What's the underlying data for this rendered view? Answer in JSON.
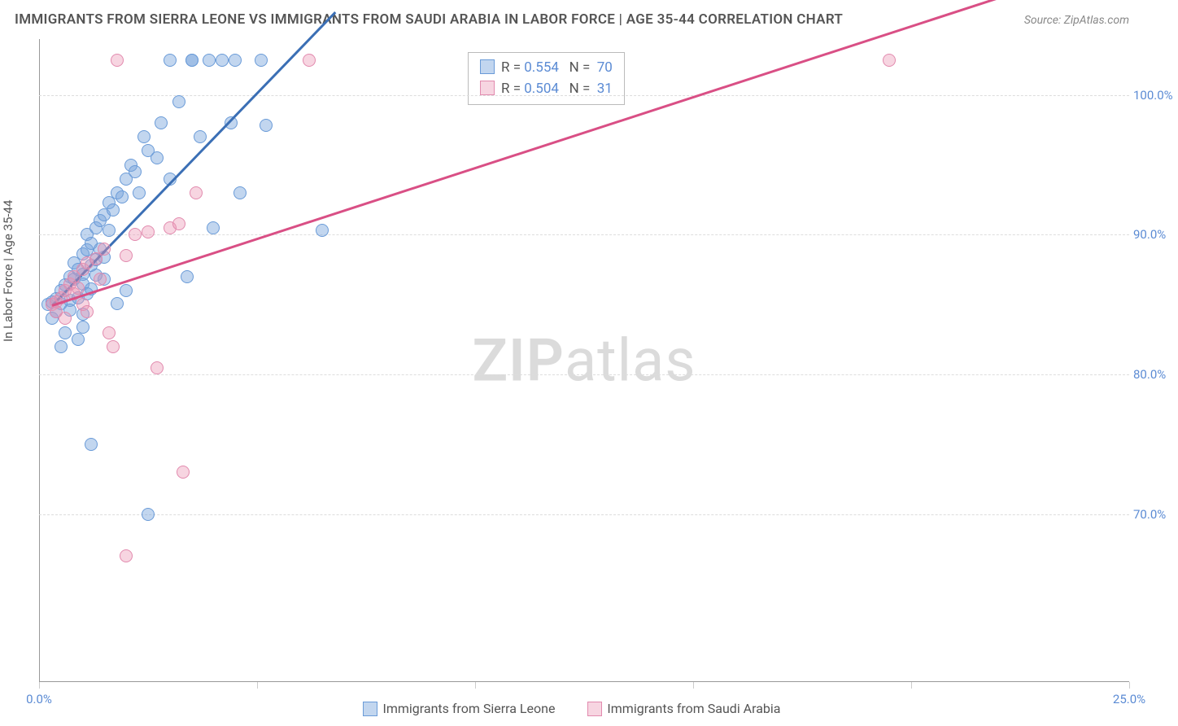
{
  "title": "IMMIGRANTS FROM SIERRA LEONE VS IMMIGRANTS FROM SAUDI ARABIA IN LABOR FORCE | AGE 35-44 CORRELATION CHART",
  "source": "Source: ZipAtlas.com",
  "y_axis_label": "In Labor Force | Age 35-44",
  "watermark_a": "ZIP",
  "watermark_b": "atlas",
  "chart": {
    "type": "scatter",
    "xlim": [
      0,
      25
    ],
    "ylim": [
      58,
      104
    ],
    "y_ticks": [
      70,
      80,
      90,
      100
    ],
    "y_tick_labels": [
      "70.0%",
      "80.0%",
      "90.0%",
      "100.0%"
    ],
    "x_ticks": [
      0,
      5,
      10,
      15,
      20,
      25
    ],
    "x_tick_labels": [
      "0.0%",
      "",
      "",
      "",
      "",
      "25.0%"
    ],
    "background_color": "#ffffff",
    "grid_color": "#dddddd",
    "series": [
      {
        "name": "Immigrants from Sierra Leone",
        "fill": "rgba(120,165,220,0.45)",
        "stroke": "#6a9bd8",
        "trend_color": "#3b6fb5",
        "R": "0.554",
        "N": "70",
        "trend": {
          "x1": 0.3,
          "y1": 85,
          "x2": 6.8,
          "y2": 106
        },
        "points": [
          [
            0.2,
            85.0
          ],
          [
            0.3,
            85.2
          ],
          [
            0.4,
            85.4
          ],
          [
            0.5,
            86.0
          ],
          [
            0.5,
            85.1
          ],
          [
            0.6,
            86.4
          ],
          [
            0.7,
            87.0
          ],
          [
            0.7,
            85.3
          ],
          [
            0.7,
            84.6
          ],
          [
            0.8,
            86.8
          ],
          [
            0.8,
            88.0
          ],
          [
            0.9,
            87.5
          ],
          [
            0.9,
            85.5
          ],
          [
            1.0,
            88.6
          ],
          [
            1.0,
            87.2
          ],
          [
            1.0,
            86.5
          ],
          [
            1.0,
            84.3
          ],
          [
            1.0,
            83.4
          ],
          [
            1.1,
            88.9
          ],
          [
            1.1,
            90.0
          ],
          [
            1.2,
            89.4
          ],
          [
            1.2,
            87.8
          ],
          [
            1.2,
            86.1
          ],
          [
            1.3,
            90.5
          ],
          [
            1.3,
            88.2
          ],
          [
            1.4,
            91.0
          ],
          [
            1.4,
            89.0
          ],
          [
            1.5,
            91.4
          ],
          [
            1.5,
            88.4
          ],
          [
            1.5,
            86.8
          ],
          [
            1.6,
            92.3
          ],
          [
            1.6,
            90.3
          ],
          [
            1.7,
            91.8
          ],
          [
            1.8,
            93.0
          ],
          [
            1.8,
            85.1
          ],
          [
            1.9,
            92.7
          ],
          [
            2.0,
            94.0
          ],
          [
            2.0,
            86.0
          ],
          [
            2.1,
            95.0
          ],
          [
            2.2,
            94.5
          ],
          [
            2.3,
            93.0
          ],
          [
            2.4,
            97.0
          ],
          [
            2.5,
            96.0
          ],
          [
            2.7,
            95.5
          ],
          [
            2.8,
            98.0
          ],
          [
            3.0,
            94.0
          ],
          [
            3.0,
            102.5
          ],
          [
            3.2,
            99.5
          ],
          [
            3.4,
            87.0
          ],
          [
            3.5,
            102.5
          ],
          [
            3.5,
            102.5
          ],
          [
            3.7,
            97.0
          ],
          [
            3.9,
            102.5
          ],
          [
            4.0,
            90.5
          ],
          [
            4.2,
            102.5
          ],
          [
            4.4,
            98.0
          ],
          [
            4.5,
            102.5
          ],
          [
            4.6,
            93.0
          ],
          [
            5.1,
            102.5
          ],
          [
            5.2,
            97.8
          ],
          [
            6.5,
            90.3
          ],
          [
            0.6,
            83.0
          ],
          [
            0.9,
            82.5
          ],
          [
            0.5,
            82.0
          ],
          [
            2.5,
            70.0
          ],
          [
            1.2,
            75.0
          ],
          [
            0.3,
            84.0
          ],
          [
            0.4,
            84.5
          ],
          [
            1.1,
            85.8
          ],
          [
            1.3,
            87.1
          ]
        ]
      },
      {
        "name": "Immigrants from Saudi Arabia",
        "fill": "rgba(235,150,180,0.40)",
        "stroke": "#e28aae",
        "trend_color": "#d94f85",
        "R": "0.504",
        "N": "31",
        "trend": {
          "x1": 0.3,
          "y1": 85,
          "x2": 22,
          "y2": 107
        },
        "points": [
          [
            0.3,
            85.0
          ],
          [
            0.4,
            85.2
          ],
          [
            0.4,
            84.5
          ],
          [
            0.5,
            85.5
          ],
          [
            0.6,
            86.0
          ],
          [
            0.6,
            84.0
          ],
          [
            0.7,
            86.5
          ],
          [
            0.8,
            85.8
          ],
          [
            0.8,
            87.0
          ],
          [
            0.9,
            86.2
          ],
          [
            1.0,
            87.5
          ],
          [
            1.0,
            85.0
          ],
          [
            1.1,
            84.5
          ],
          [
            1.1,
            88.0
          ],
          [
            1.3,
            88.3
          ],
          [
            1.4,
            86.8
          ],
          [
            1.5,
            89.0
          ],
          [
            1.6,
            83.0
          ],
          [
            1.7,
            82.0
          ],
          [
            1.8,
            102.5
          ],
          [
            2.0,
            88.5
          ],
          [
            2.2,
            90.0
          ],
          [
            2.5,
            90.2
          ],
          [
            2.7,
            80.5
          ],
          [
            3.0,
            90.5
          ],
          [
            3.2,
            90.8
          ],
          [
            3.3,
            73.0
          ],
          [
            3.6,
            93.0
          ],
          [
            6.2,
            102.5
          ],
          [
            2.0,
            67.0
          ],
          [
            19.5,
            102.5
          ]
        ]
      }
    ]
  },
  "bottom_legend": {
    "s1": "Immigrants from Sierra Leone",
    "s2": "Immigrants from Saudi Arabia"
  }
}
